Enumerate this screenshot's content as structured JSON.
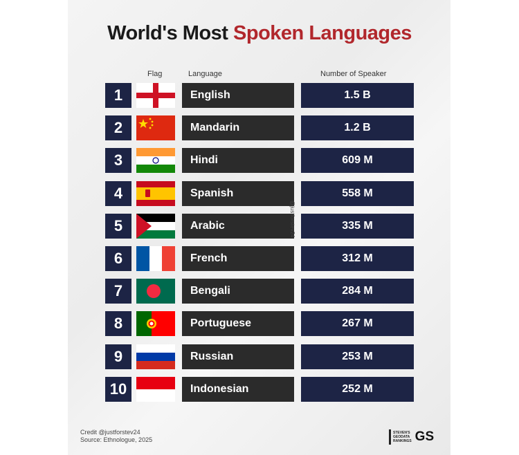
{
  "title": {
    "part1": "World's Most ",
    "part2": "Spoken Languages"
  },
  "chart_data": {
    "type": "table",
    "columns": [
      "Flag",
      "Language",
      "Number of Speaker"
    ],
    "rows": [
      {
        "rank": "1",
        "flag": "england-flag",
        "language": "English",
        "speakers": "1.5 B"
      },
      {
        "rank": "2",
        "flag": "china-flag",
        "language": "Mandarin",
        "speakers": "1.2 B"
      },
      {
        "rank": "3",
        "flag": "india-flag",
        "language": "Hindi",
        "speakers": "609 M"
      },
      {
        "rank": "4",
        "flag": "spain-flag",
        "language": "Spanish",
        "speakers": "558 M"
      },
      {
        "rank": "5",
        "flag": "palestine-flag",
        "language": "Arabic",
        "speakers": "335 M"
      },
      {
        "rank": "6",
        "flag": "france-flag",
        "language": "French",
        "speakers": "312 M"
      },
      {
        "rank": "7",
        "flag": "bangladesh-flag",
        "language": "Bengali",
        "speakers": "284 M"
      },
      {
        "rank": "8",
        "flag": "portugal-flag",
        "language": "Portuguese",
        "speakers": "267 M"
      },
      {
        "rank": "9",
        "flag": "russia-flag",
        "language": "Russian",
        "speakers": "253 M"
      },
      {
        "rank": "10",
        "flag": "indonesia-flag",
        "language": "Indonesian",
        "speakers": "252 M"
      }
    ]
  },
  "watermark": "@justforstev24",
  "credit": {
    "line1": "Credit @justforstev24",
    "line2": "Source: Ethnologue, 2025"
  },
  "logo": {
    "small_text": [
      "STEVEN'S",
      "GEODATA",
      "RANKINGS"
    ],
    "mark": "GS"
  },
  "colors": {
    "accent": "#b1272c",
    "rank_bg": "#1d2445",
    "lang_bg": "#2b2b2b",
    "num_bg": "#1d2445"
  }
}
